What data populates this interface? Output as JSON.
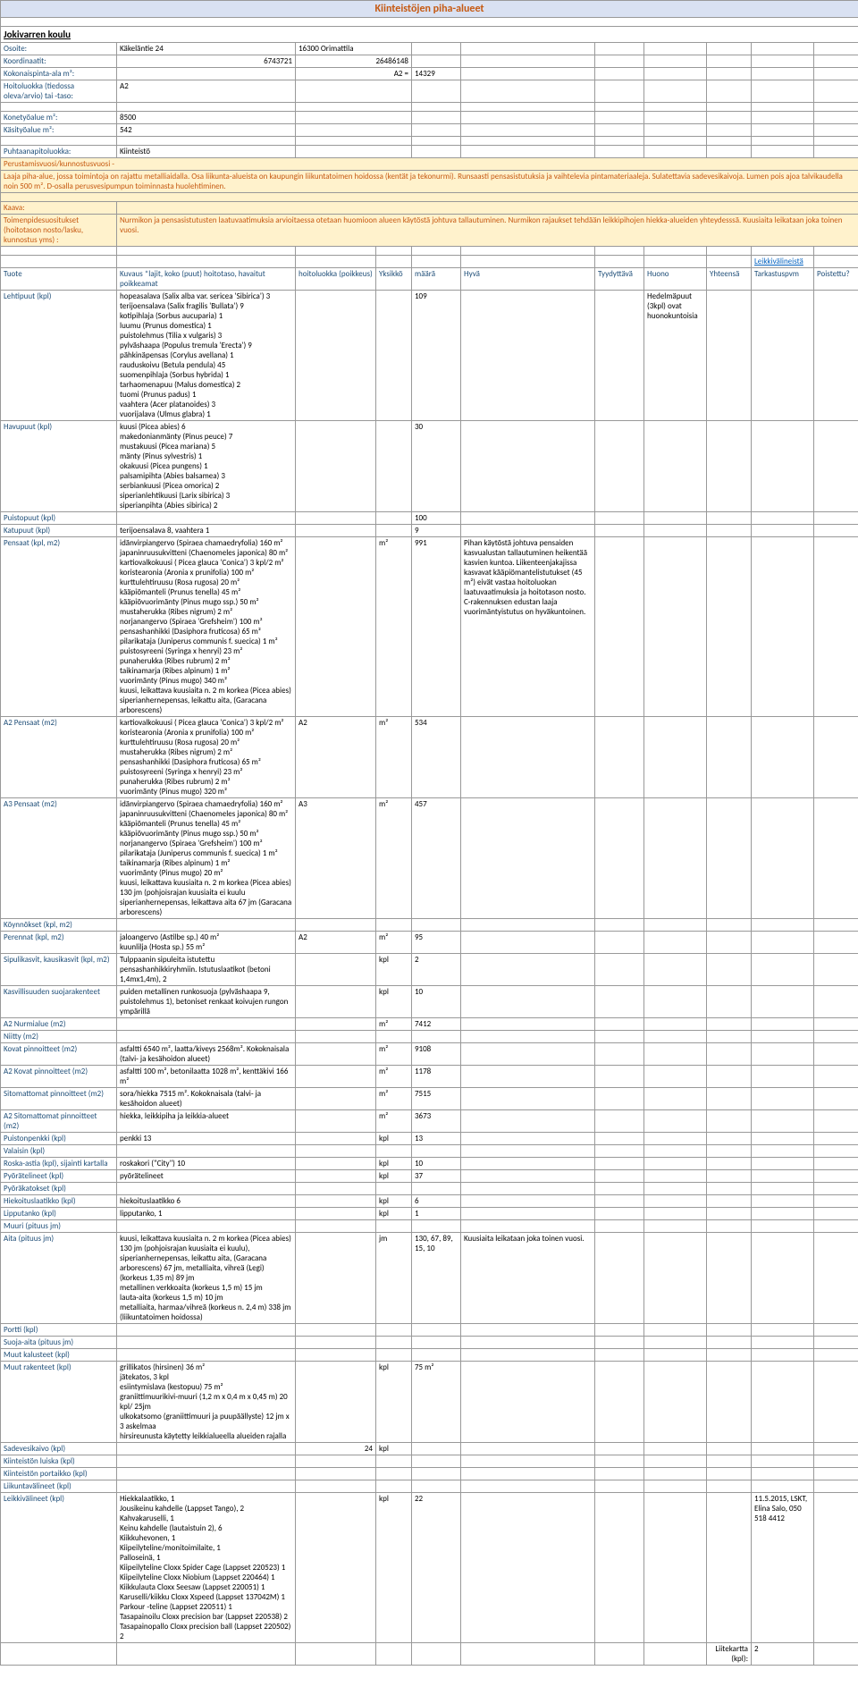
{
  "title": "Kiinteistöjen piha-alueet",
  "school": "Jokivarren koulu",
  "fields": {
    "osoite_label": "Osoite:",
    "osoite_a": "Käkeläntie 24",
    "osoite_b": "16300 Orimattila",
    "koord_label": "Koordinaatit:",
    "koord_a": "6743721",
    "koord_b": "26486148",
    "pinta_label": "Kokonaispinta-ala m²:",
    "pinta_a": "A2 =",
    "pinta_b": "14329",
    "hoito_label": "Hoitoluokka (tiedossa oleva/arvio) tai -taso:",
    "hoito_val": "A2",
    "konetyö_label": "Konetyöalue m²:",
    "konetyö_val": "8500",
    "käsityö_label": "Käsityöalue m²:",
    "käsityö_val": "542",
    "puhtaana_label": "Puhtaanapitoluokka:",
    "puhtaana_val": "Kiinteistö",
    "perus_label": "Perustamisvuosi/kunnostusvuosi -",
    "perus_text": "Laaja piha-alue, jossa toimintoja on rajattu metalliaidalla. Osa liikunta-alueista on kaupungin liikuntatoimen hoidossa (kentät ja tekonurmi). Runsaasti pensasistutuksia ja vaihtelevia pintamateriaaleja.  Sulatettavia sadevesikaivoja. Lumen pois ajoa talvikaudella noin 500 m².  D-osalla perusvesipumpun toiminnasta huolehtiminen.",
    "kaava_label": "Kaava:",
    "toimen_label": "Toimenpidesuositukset (hoitotason nosto/lasku, kunnostus yms) :",
    "toimen_text": "Nurmikon ja pensasistutusten laatuvaatimuksia arvioitaessa otetaan huomioon alueen käytöstä johtuva tallautuminen. Nurmikon rajaukset tehdään leikkipihojen hiekka-alueiden yhteydesssä. Kuusiaita leikataan joka toinen vuosi.",
    "leikki_link": "Leikkivälineistä"
  },
  "headers": {
    "tuote": "Tuote",
    "kuvaus": "Kuvaus *lajit, koko (puut) hoitotaso, havaitut poikkeamat",
    "hoitoluokka": "hoitoluokka (poikkeus)",
    "yksikkö": "Yksikkö",
    "määrä": "määrä",
    "hyvä": "Hyvä",
    "tyydyttävä": "Tyydyttävä",
    "huono": "Huono",
    "yhteensä": "Yhteensä",
    "tarkastus": "Tarkastuspvm",
    "poistettu": "Poistettu?"
  },
  "rows": [
    {
      "t": "Lehtipuut (kpl)",
      "k": "hopeasalava (Salix alba var. sericea 'Sibirica') 3\nterijoensalava (Salix fragilis 'Bullata') 9\nkotipihlaja (Sorbus aucuparia) 1\nluumu (Prunus domestica) 1\npuistolehmus (Tilia x vulgaris) 3\npylväshaapa (Populus tremula 'Erecta') 9\npähkinäpensas (Corylus avellana) 1\nrauduskoivu (Betula pendula) 45\nsuomenpihlaja (Sorbus hybrida) 1\ntarhaomenapuu (Malus domestica) 2\ntuomi (Prunus padus) 1\nvaahtera (Acer platanoides) 3\nvuorijalava (Ulmus glabra) 1",
      "h": "",
      "y": "",
      "m": "109",
      "hy": "",
      "ty": "",
      "hu": "Hedelmäpuut (3kpl) ovat huonokuntoisia",
      "yh": "",
      "ta": "",
      "po": ""
    },
    {
      "t": "Havupuut (kpl)",
      "k": "kuusi (Picea abies) 6\nmakedonianmänty (Pinus peuce) 7\nmustakuusi (Picea mariana) 5\nmänty (Pinus sylvestris) 1\nokakuusi (Picea pungens) 1\npalsamipihta (Abies balsamea) 3\nserbiankuusi (Picea omorica) 2\nsiperianlehtikuusi (Larix sibirica) 3\nsiperianpihta (Abies sibirica) 2",
      "h": "",
      "y": "",
      "m": "30",
      "hy": "",
      "ty": "",
      "hu": "",
      "yh": "",
      "ta": "",
      "po": ""
    },
    {
      "t": "Puistopuut (kpl)",
      "k": "",
      "h": "",
      "y": "",
      "m": "100",
      "hy": "",
      "ty": "",
      "hu": "",
      "yh": "",
      "ta": "",
      "po": ""
    },
    {
      "t": "Katupuut (kpl)",
      "k": "terijoensalava 8, vaahtera 1",
      "h": "",
      "y": "",
      "m": "9",
      "hy": "",
      "ty": "",
      "hu": "",
      "yh": "",
      "ta": "",
      "po": ""
    },
    {
      "t": "Pensaat (kpl, m2)",
      "k": "idänvirpiangervo (Spiraea chamaedryfolia) 160 m²\njapaninruusukvitteni (Chaenomeles japonica) 80 m²\nkartiovalkokuusi ( Picea glauca 'Conica') 3 kpl/2 m²\nkoristearonia (Aronia x prunifolia) 100 m²\nkurttulehtiruusu (Rosa rugosa) 20 m²\nkääpiömanteli (Prunus tenella) 45 m²\nkääpiövuorimänty (Pinus mugo ssp.) 50 m²\nmustaherukka (Ribes nigrum) 2 m²\nnorjanangervo (Spiraea 'Grefsheim') 100 m²\npensashanhikki (Dasiphora fruticosa) 65 m²\npilarikataja (Juniperus communis f. suecica) 1 m²\npuistosyreeni (Syringa x henryi) 23 m²\npunaherukka (Ribes rubrum) 2 m²\ntaikinamarja (Ribes alpinum) 1 m²\nvuorimänty (Pinus mugo) 340 m²\nkuusi, leikattava kuusiaita n. 2 m korkea (Picea abies)\nsiperianhernepensas, leikattu aita, (Garacana arborescens)",
      "h": "",
      "y": "m²",
      "m": "991",
      "hy": "Pihan käytöstä johtuva pensaiden kasvualustan tallautuminen heikentää kasvien kuntoa. Liikenteenjakajissa kasvavat kääpiömantelistutukset (45 m²) eivät vastaa hoitoluokan laatuvaatimuksia ja hoitotason nosto. C-rakennuksen edustan laaja vuorimäntyistutus on hyväkuntoinen.",
      "ty": "",
      "hu": "",
      "yh": "",
      "ta": "",
      "po": ""
    },
    {
      "t": "A2 Pensaat (m2)",
      "k": "kartiovalkokuusi ( Picea glauca 'Conica') 3 kpl/2 m²\nkoristearonia (Aronia x prunifolia) 100 m²\nkurttulehtiruusu (Rosa rugosa) 20 m²\nmustaherukka (Ribes nigrum) 2 m²\npensashanhikki (Dasiphora fruticosa) 65 m²\npuistosyreeni (Syringa x henryi) 23 m²\npunaherukka (Ribes rubrum) 2 m²\nvuorimänty (Pinus mugo) 320 m²",
      "h": "A2",
      "y": "m²",
      "m": "534",
      "hy": "",
      "ty": "",
      "hu": "",
      "yh": "",
      "ta": "",
      "po": ""
    },
    {
      "t": "A3 Pensaat (m2)",
      "k": "idänvirpiangervo (Spiraea chamaedryfolia) 160 m²\njapaninruusukvitteni (Chaenomeles japonica) 80 m²\nkääpiömanteli (Prunus tenella) 45 m²\nkääpiövuorimänty (Pinus mugo ssp.) 50 m²\nnorjanangervo (Spiraea 'Grefsheim') 100 m²\npilarikataja (Juniperus communis f. suecica) 1 m²\ntaikinamarja (Ribes alpinum) 1 m²\nvuorimänty (Pinus mugo) 20 m²\nkuusi, leikattava kuusiaita n. 2 m korkea (Picea abies) 130 jm (pohjoisrajan kuusiaita ei kuulu\nsiperianhernepensas, leikattava aita 67 jm (Garacana arborescens)",
      "h": "A3",
      "y": "m²",
      "m": "457",
      "hy": "",
      "ty": "",
      "hu": "",
      "yh": "",
      "ta": "",
      "po": ""
    },
    {
      "t": "Köynnökset (kpl, m2)",
      "k": "",
      "h": "",
      "y": "",
      "m": "",
      "hy": "",
      "ty": "",
      "hu": "",
      "yh": "",
      "ta": "",
      "po": ""
    },
    {
      "t": "Perennat (kpl, m2)",
      "k": "jaloangervo (Astilbe sp.) 40 m²\nkuunlilja (Hosta sp.) 55  m²",
      "h": "A2",
      "y": "m²",
      "m": "95",
      "hy": "",
      "ty": "",
      "hu": "",
      "yh": "",
      "ta": "",
      "po": ""
    },
    {
      "t": "Sipulikasvit, kausikasvit (kpl, m2)",
      "k": "Tulppaanin sipuleita istutettu pensashanhikkiryhmiin. Istutuslaatikot (betoni 1,4mx1,4m), 2",
      "h": "",
      "y": "kpl",
      "m": "2",
      "hy": "",
      "ty": "",
      "hu": "",
      "yh": "",
      "ta": "",
      "po": ""
    },
    {
      "t": "Kasvillisuuden suojarakenteet",
      "k": "puiden metallinen runkosuoja (pylväshaapa 9, puistolehmus 1), betoniset renkaat koivujen rungon ympärillä",
      "h": "",
      "y": "kpl",
      "m": "10",
      "hy": "",
      "ty": "",
      "hu": "",
      "yh": "",
      "ta": "",
      "po": ""
    },
    {
      "t": "A2 Nurmialue (m2)",
      "k": "",
      "h": "",
      "y": "m²",
      "m": "7412",
      "hy": "",
      "ty": "",
      "hu": "",
      "yh": "",
      "ta": "",
      "po": ""
    },
    {
      "t": "Niitty (m2)",
      "k": "",
      "h": "",
      "y": "",
      "m": "",
      "hy": "",
      "ty": "",
      "hu": "",
      "yh": "",
      "ta": "",
      "po": ""
    },
    {
      "t": "Kovat pinnoitteet (m2)",
      "k": "asfaltti 6540 m², laatta/kiveys 2568m². Kokoknaisala (talvi- ja kesähoidon alueet)",
      "h": "",
      "y": "m²",
      "m": "9108",
      "hy": "",
      "ty": "",
      "hu": "",
      "yh": "",
      "ta": "",
      "po": ""
    },
    {
      "t": "A2 Kovat pinnoitteet (m2)",
      "k": "asfaltti 100 m², betonilaatta 1028 m², kenttäkivi 166 m²",
      "h": "",
      "y": "m²",
      "m": "1178",
      "hy": "",
      "ty": "",
      "hu": "",
      "yh": "",
      "ta": "",
      "po": ""
    },
    {
      "t": "Sitomattomat pinnoitteet (m2)",
      "k": "sora/hiekka 7515 m². Kokoknaisala (talvi- ja kesähoidon alueet)",
      "h": "",
      "y": "m²",
      "m": "7515",
      "hy": "",
      "ty": "",
      "hu": "",
      "yh": "",
      "ta": "",
      "po": ""
    },
    {
      "t": "A2 Sitomattomat pinnoitteet (m2)",
      "k": "hiekka, leikkipiha ja leikkia-alueet",
      "h": "",
      "y": "m²",
      "m": "3673",
      "hy": "",
      "ty": "",
      "hu": "",
      "yh": "",
      "ta": "",
      "po": ""
    },
    {
      "t": "Puistonpenkki (kpl)",
      "k": "penkki 13",
      "h": "",
      "y": "kpl",
      "m": "13",
      "hy": "",
      "ty": "",
      "hu": "",
      "yh": "",
      "ta": "",
      "po": ""
    },
    {
      "t": "Valaisin (kpl)",
      "k": "",
      "h": "",
      "y": "",
      "m": "",
      "hy": "",
      "ty": "",
      "hu": "",
      "yh": "",
      "ta": "",
      "po": ""
    },
    {
      "t": "Roska-astia (kpl), sijainti kartalla",
      "k": "roskakori (\"City\") 10",
      "h": "",
      "y": "kpl",
      "m": "10",
      "hy": "",
      "ty": "",
      "hu": "",
      "yh": "",
      "ta": "",
      "po": ""
    },
    {
      "t": "Pyörätelineet (kpl)",
      "k": "pyörätelineet",
      "h": "",
      "y": "kpl",
      "m": "37",
      "hy": "",
      "ty": "",
      "hu": "",
      "yh": "",
      "ta": "",
      "po": ""
    },
    {
      "t": "Pyöräkatokset (kpl)",
      "k": "",
      "h": "",
      "y": "",
      "m": "",
      "hy": "",
      "ty": "",
      "hu": "",
      "yh": "",
      "ta": "",
      "po": ""
    },
    {
      "t": "Hiekoituslaatikko (kpl)",
      "k": "hiekoituslaatikko 6",
      "h": "",
      "y": "kpl",
      "m": "6",
      "hy": "",
      "ty": "",
      "hu": "",
      "yh": "",
      "ta": "",
      "po": ""
    },
    {
      "t": "Lipputanko (kpl)",
      "k": "lipputanko, 1",
      "h": "",
      "y": "kpl",
      "m": "1",
      "hy": "",
      "ty": "",
      "hu": "",
      "yh": "",
      "ta": "",
      "po": ""
    },
    {
      "t": "Muuri (pituus jm)",
      "k": "",
      "h": "",
      "y": "",
      "m": "",
      "hy": "",
      "ty": "",
      "hu": "",
      "yh": "",
      "ta": "",
      "po": ""
    },
    {
      "t": "Aita (pituus jm)",
      "k": "kuusi, leikattava kuusiaita n. 2 m korkea (Picea abies) 130 jm (pohjoisrajan kuusiaita ei kuulu), siperianhernepensas, leikattu aita, (Garacana arborescens) 67 jm, metalliaita, vihreä (Legi) (korkeus 1,35 m) 89 jm\nmetallinen verkkoaita (korkeus 1,5 m) 15 jm\nlauta-aita (korkeus 1,5 m) 10 jm\nmetalliaita, harmaa/vihreä (korkeus n. 2,4 m) 338 jm (liikuntatoimen hoidossa)",
      "h": "",
      "y": "jm",
      "m": "130, 67, 89, 15, 10",
      "hy": "Kuusiaita leikataan joka toinen vuosi.",
      "ty": "",
      "hu": "",
      "yh": "",
      "ta": "",
      "po": ""
    },
    {
      "t": "Portti (kpl)",
      "k": "",
      "h": "",
      "y": "",
      "m": "",
      "hy": "",
      "ty": "",
      "hu": "",
      "yh": "",
      "ta": "",
      "po": ""
    },
    {
      "t": "Suoja-aita (pituus jm)",
      "k": "",
      "h": "",
      "y": "",
      "m": "",
      "hy": "",
      "ty": "",
      "hu": "",
      "yh": "",
      "ta": "",
      "po": ""
    },
    {
      "t": "Muut kalusteet (kpl)",
      "k": "",
      "h": "",
      "y": "",
      "m": "",
      "hy": "",
      "ty": "",
      "hu": "",
      "yh": "",
      "ta": "",
      "po": ""
    },
    {
      "t": "Muut rakenteet (kpl)",
      "k": "grillikatos (hirsinen) 36 m²\njätekatos, 3 kpl\nesiintymislava (kestopuu) 75 m²\ngraniittimuurikivi-muuri (1,2 m x 0,4 m x 0,45 m) 20 kpl/ 25jm\nulkokatsomo (graniittimuuri ja puupäällyste) 12 jm x 3 askelmaa\nhirsireunusta käytetty leikkialueella alueiden rajalla",
      "h": "",
      "y": "kpl",
      "m": "75 m²",
      "hy": "",
      "ty": "",
      "hu": "",
      "yh": "",
      "ta": "",
      "po": ""
    },
    {
      "t": "Sadevesikaivo (kpl)",
      "k": "",
      "h": "24",
      "y": "kpl",
      "m": "",
      "hy": "",
      "ty": "",
      "hu": "",
      "yh": "",
      "ta": "",
      "po": ""
    },
    {
      "t": "Kiinteistön luiska (kpl)",
      "k": "",
      "h": "",
      "y": "",
      "m": "",
      "hy": "",
      "ty": "",
      "hu": "",
      "yh": "",
      "ta": "",
      "po": ""
    },
    {
      "t": "Kiinteistön portaikko (kpl)",
      "k": "",
      "h": "",
      "y": "",
      "m": "",
      "hy": "",
      "ty": "",
      "hu": "",
      "yh": "",
      "ta": "",
      "po": ""
    },
    {
      "t": "Liikuntavälineet (kpl)",
      "k": "",
      "h": "",
      "y": "",
      "m": "",
      "hy": "",
      "ty": "",
      "hu": "",
      "yh": "",
      "ta": "",
      "po": ""
    },
    {
      "t": "Leikkivälineet (kpl)",
      "k": "Hiekkalaatikko, 1\nJousikeinu kahdelle (Lappset Tango), 2\nKahvakaruselli, 1\nKeinu kahdelle (lautaistuin 2), 6\nKiikkuhevonen, 1\nKiipeilyteline/monitoimilaite, 1\nPalloseinä, 1\nKiipeilyteline Cloxx Spider Cage (Lappset 220523) 1\nKiipeilyteline Cloxx Niobium (Lappset 220464) 1\nKiikkulauta Cloxx Seesaw (Lappset 220051) 1\nKaruselli/kiikku Cloxx Xspeed (Lappset 137042M) 1\nParkour -teline (Lappset 220511) 1\nTasapainoilu  Cloxx precision bar (Lappset 220538) 2\nTasapainopallo Cloxx precision ball (Lappset 220502) 2",
      "h": "",
      "y": "kpl",
      "m": "22",
      "hy": "",
      "ty": "",
      "hu": "",
      "yh": "",
      "ta": "11.5.2015, LSKT, Elina Salo, 050 518 4412",
      "po": ""
    }
  ],
  "footer": {
    "label": "Liitekartta (kpl):",
    "val": "2"
  }
}
